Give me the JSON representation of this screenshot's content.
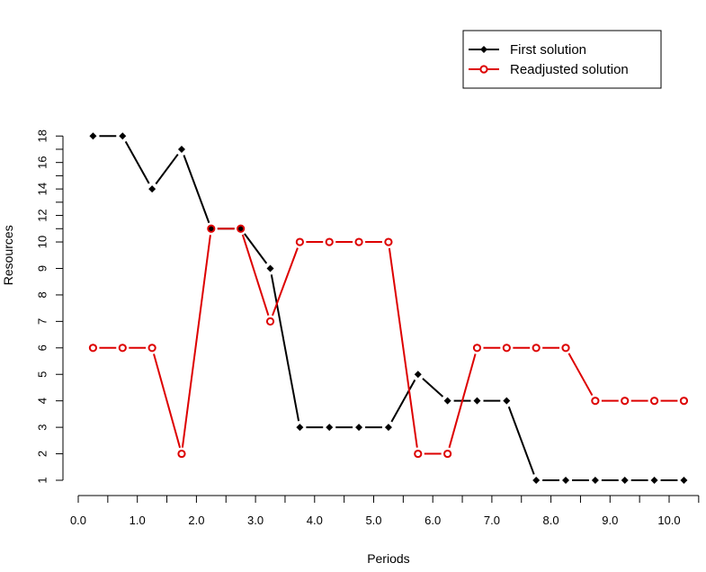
{
  "chart_data": {
    "type": "line",
    "xlabel": "Periods",
    "ylabel": "Resources",
    "x": [
      0.25,
      0.75,
      1.25,
      1.75,
      2.25,
      2.75,
      3.25,
      3.75,
      4.25,
      4.75,
      5.25,
      5.75,
      6.25,
      6.75,
      7.25,
      7.75,
      8.25,
      8.75,
      9.25,
      9.75,
      10.25
    ],
    "x_ticks": [
      "0.0",
      "1.0",
      "2.0",
      "3.0",
      "4.0",
      "5.0",
      "6.0",
      "7.0",
      "8.0",
      "9.0",
      "10.0"
    ],
    "x_tick_values": [
      0,
      1,
      2,
      3,
      4,
      5,
      6,
      7,
      8,
      9,
      10
    ],
    "x_minor_ticks": [
      0.5,
      1.5,
      2.5,
      3.5,
      4.5,
      5.5,
      6.5,
      7.5,
      8.5,
      9.5,
      10.5
    ],
    "y_ticks": [
      "1",
      "2",
      "3",
      "4",
      "5",
      "6",
      "7",
      "8",
      "9",
      "10",
      "12",
      "14",
      "16",
      "18"
    ],
    "y_tick_values": [
      1,
      2,
      3,
      4,
      5,
      6,
      7,
      8,
      9,
      10,
      12,
      14,
      16,
      18
    ],
    "y_minor_ticks": [
      11,
      13,
      15,
      17
    ],
    "y_scale": "piecewise: unit spacing 1-10, half spacing 10-18",
    "xlim": [
      0,
      10.5
    ],
    "ylim": [
      1,
      18
    ],
    "grid": false,
    "legend_position": "top-right",
    "series": [
      {
        "name": "First solution",
        "color": "#000000",
        "marker": "diamond-filled",
        "values": [
          18,
          18,
          14,
          17,
          11,
          11,
          9,
          3,
          3,
          3,
          3,
          5,
          4,
          4,
          4,
          1,
          1,
          1,
          1,
          1,
          1
        ]
      },
      {
        "name": "Readjusted solution",
        "color": "#dd0000",
        "marker": "circle-open",
        "values": [
          6,
          6,
          6,
          2,
          11,
          11,
          7,
          10,
          10,
          10,
          10,
          2,
          2,
          6,
          6,
          6,
          6,
          4,
          4,
          4,
          4
        ]
      }
    ]
  }
}
